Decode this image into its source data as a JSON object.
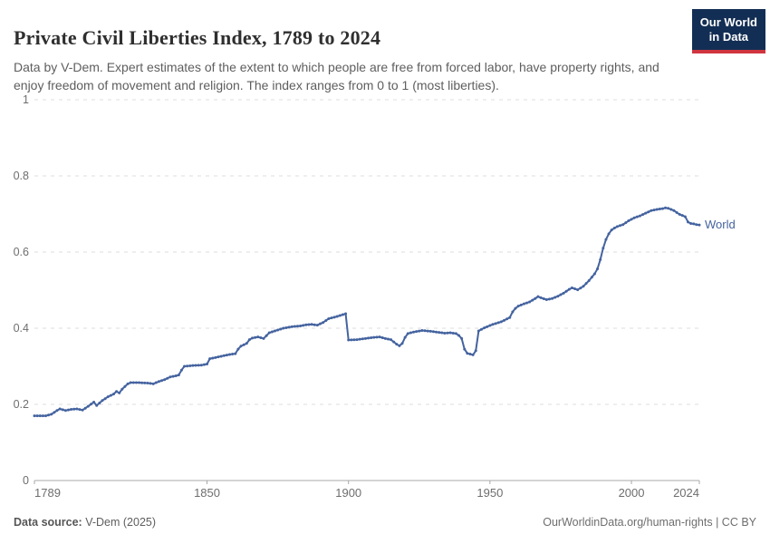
{
  "header": {
    "title": "Private Civil Liberties Index, 1789 to 2024",
    "subtitle": "Data by V-Dem. Expert estimates of the extent to which people are free from forced labor, have property rights, and enjoy freedom of movement and religion. The index ranges from 0 to 1 (most liberties).",
    "logo": {
      "line1": "Our World",
      "line2": "in Data"
    }
  },
  "chart_data": {
    "type": "line",
    "title": "Private Civil Liberties Index, 1789 to 2024",
    "xlabel": "",
    "ylabel": "",
    "xlim": [
      1789,
      2024
    ],
    "ylim": [
      0,
      1
    ],
    "x_ticks": [
      1789,
      1850,
      1900,
      1950,
      2000,
      2024
    ],
    "y_ticks": [
      0,
      0.2,
      0.4,
      0.6,
      0.8,
      1
    ],
    "grid": "horizontal-dashed",
    "legend_position": "end-of-line",
    "series": [
      {
        "name": "World",
        "color": "#44639f",
        "points": [
          [
            1789,
            0.17
          ],
          [
            1793,
            0.17
          ],
          [
            1795,
            0.174
          ],
          [
            1797,
            0.184
          ],
          [
            1798,
            0.188
          ],
          [
            1800,
            0.184
          ],
          [
            1802,
            0.187
          ],
          [
            1804,
            0.188
          ],
          [
            1806,
            0.185
          ],
          [
            1808,
            0.195
          ],
          [
            1810,
            0.206
          ],
          [
            1811,
            0.197
          ],
          [
            1813,
            0.21
          ],
          [
            1815,
            0.22
          ],
          [
            1817,
            0.227
          ],
          [
            1818,
            0.234
          ],
          [
            1819,
            0.23
          ],
          [
            1820,
            0.24
          ],
          [
            1822,
            0.254
          ],
          [
            1823,
            0.257
          ],
          [
            1826,
            0.257
          ],
          [
            1829,
            0.256
          ],
          [
            1831,
            0.254
          ],
          [
            1833,
            0.26
          ],
          [
            1835,
            0.265
          ],
          [
            1837,
            0.272
          ],
          [
            1839,
            0.275
          ],
          [
            1840,
            0.277
          ],
          [
            1841,
            0.29
          ],
          [
            1842,
            0.3
          ],
          [
            1845,
            0.302
          ],
          [
            1848,
            0.303
          ],
          [
            1850,
            0.306
          ],
          [
            1851,
            0.32
          ],
          [
            1853,
            0.323
          ],
          [
            1856,
            0.328
          ],
          [
            1858,
            0.331
          ],
          [
            1860,
            0.333
          ],
          [
            1861,
            0.345
          ],
          [
            1862,
            0.353
          ],
          [
            1864,
            0.36
          ],
          [
            1865,
            0.37
          ],
          [
            1866,
            0.374
          ],
          [
            1868,
            0.377
          ],
          [
            1869,
            0.375
          ],
          [
            1870,
            0.373
          ],
          [
            1872,
            0.388
          ],
          [
            1874,
            0.393
          ],
          [
            1877,
            0.4
          ],
          [
            1880,
            0.404
          ],
          [
            1883,
            0.406
          ],
          [
            1885,
            0.409
          ],
          [
            1887,
            0.41
          ],
          [
            1889,
            0.408
          ],
          [
            1891,
            0.415
          ],
          [
            1893,
            0.425
          ],
          [
            1896,
            0.431
          ],
          [
            1899,
            0.438
          ],
          [
            1900,
            0.369
          ],
          [
            1903,
            0.37
          ],
          [
            1906,
            0.373
          ],
          [
            1909,
            0.376
          ],
          [
            1911,
            0.377
          ],
          [
            1913,
            0.373
          ],
          [
            1915,
            0.37
          ],
          [
            1917,
            0.358
          ],
          [
            1918,
            0.354
          ],
          [
            1919,
            0.36
          ],
          [
            1920,
            0.376
          ],
          [
            1921,
            0.386
          ],
          [
            1923,
            0.39
          ],
          [
            1926,
            0.394
          ],
          [
            1929,
            0.392
          ],
          [
            1932,
            0.389
          ],
          [
            1934,
            0.387
          ],
          [
            1936,
            0.388
          ],
          [
            1938,
            0.386
          ],
          [
            1939,
            0.381
          ],
          [
            1940,
            0.373
          ],
          [
            1941,
            0.345
          ],
          [
            1942,
            0.334
          ],
          [
            1944,
            0.33
          ],
          [
            1945,
            0.341
          ],
          [
            1946,
            0.393
          ],
          [
            1948,
            0.401
          ],
          [
            1951,
            0.41
          ],
          [
            1954,
            0.417
          ],
          [
            1957,
            0.428
          ],
          [
            1958,
            0.443
          ],
          [
            1959,
            0.452
          ],
          [
            1960,
            0.458
          ],
          [
            1962,
            0.464
          ],
          [
            1964,
            0.469
          ],
          [
            1966,
            0.478
          ],
          [
            1967,
            0.483
          ],
          [
            1968,
            0.48
          ],
          [
            1970,
            0.475
          ],
          [
            1972,
            0.478
          ],
          [
            1974,
            0.484
          ],
          [
            1976,
            0.492
          ],
          [
            1978,
            0.502
          ],
          [
            1979,
            0.506
          ],
          [
            1981,
            0.501
          ],
          [
            1983,
            0.51
          ],
          [
            1985,
            0.525
          ],
          [
            1987,
            0.543
          ],
          [
            1988,
            0.556
          ],
          [
            1989,
            0.58
          ],
          [
            1990,
            0.61
          ],
          [
            1991,
            0.633
          ],
          [
            1992,
            0.648
          ],
          [
            1993,
            0.658
          ],
          [
            1994,
            0.663
          ],
          [
            1995,
            0.667
          ],
          [
            1997,
            0.672
          ],
          [
            1999,
            0.682
          ],
          [
            2001,
            0.69
          ],
          [
            2003,
            0.695
          ],
          [
            2005,
            0.702
          ],
          [
            2007,
            0.709
          ],
          [
            2009,
            0.712
          ],
          [
            2011,
            0.714
          ],
          [
            2012,
            0.716
          ],
          [
            2013,
            0.715
          ],
          [
            2014,
            0.712
          ],
          [
            2015,
            0.709
          ],
          [
            2016,
            0.704
          ],
          [
            2017,
            0.699
          ],
          [
            2018,
            0.696
          ],
          [
            2019,
            0.693
          ],
          [
            2020,
            0.679
          ],
          [
            2021,
            0.675
          ],
          [
            2022,
            0.674
          ],
          [
            2023,
            0.672
          ],
          [
            2024,
            0.671
          ]
        ]
      }
    ]
  },
  "footer": {
    "source_label": "Data source:",
    "source_value": "V-Dem (2025)",
    "url_text": "OurWorldinData.org/human-rights",
    "license_text": "| CC BY"
  },
  "colors": {
    "line": "#44639f",
    "grid": "#dcdcdc",
    "axis_line": "#a8a8a8",
    "axis_text": "#6e6e6e",
    "logo_bg": "#132e54",
    "logo_stripe": "#d0353f"
  }
}
